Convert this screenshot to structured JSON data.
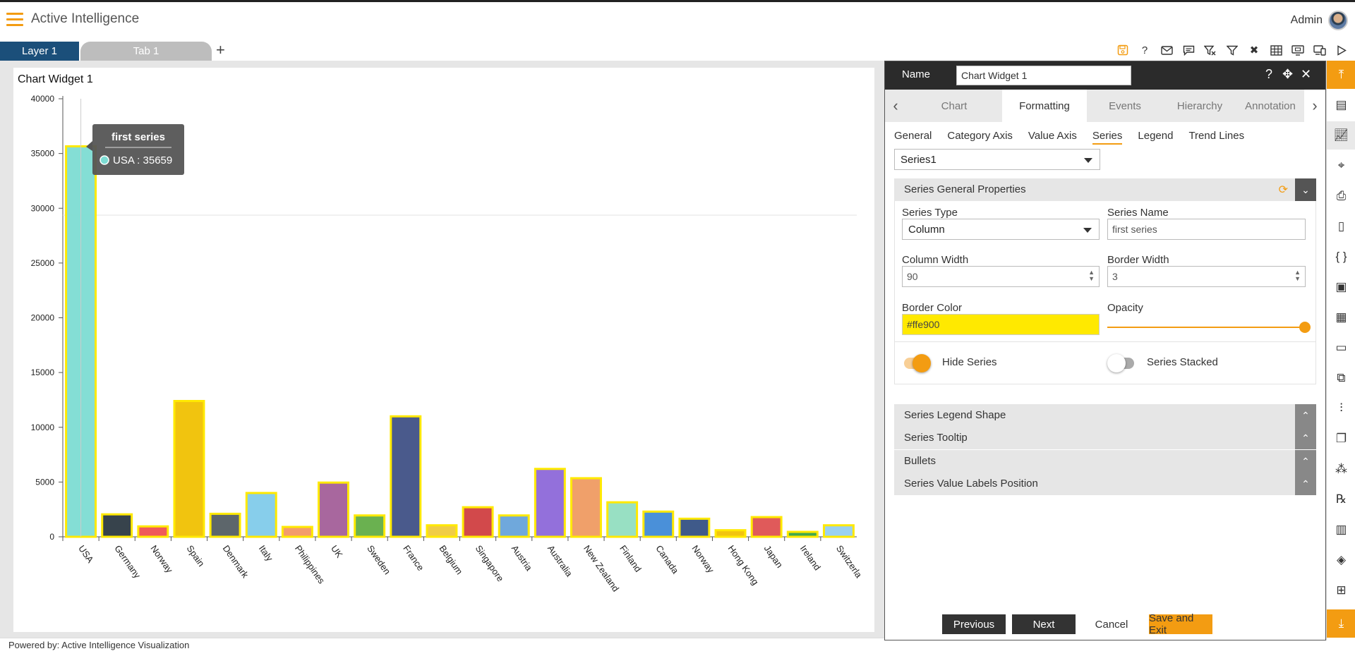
{
  "app": {
    "title": "Active Intelligence",
    "user": "Admin"
  },
  "tabs": {
    "layer": "Layer 1",
    "tab": "Tab 1",
    "add": "+"
  },
  "toolbar_icons": [
    "save-icon",
    "help-icon",
    "mail-icon",
    "comment-icon",
    "clear-filter-icon",
    "filter-icon",
    "tools-icon",
    "table-icon",
    "screen-icon",
    "devices-icon",
    "play-icon"
  ],
  "widget": {
    "title": "Chart Widget 1"
  },
  "footer": {
    "text": "Powered by: Active Intelligence Visualization"
  },
  "chart_data": {
    "type": "bar",
    "title": "Chart Widget 1",
    "ylim": [
      0,
      40000
    ],
    "yticks": [
      0,
      5000,
      10000,
      15000,
      20000,
      25000,
      30000,
      35000,
      40000
    ],
    "categories": [
      "USA",
      "Germany",
      "Norway",
      "Spain",
      "Denmark",
      "Italy",
      "Philippines",
      "UK",
      "Sweden",
      "France",
      "Belgium",
      "Singapore",
      "Austria",
      "Australia",
      "New Zealand",
      "Finland",
      "Canada",
      "Norway",
      "Hong Kong",
      "Japan",
      "Ireland",
      "Switzerla"
    ],
    "values": [
      35659,
      2050,
      950,
      12400,
      2100,
      4000,
      900,
      4950,
      1950,
      11000,
      1050,
      2700,
      1950,
      6200,
      5350,
      3150,
      2300,
      1650,
      600,
      1800,
      450,
      1050
    ],
    "colors": [
      "#7ddcd3",
      "#37434c",
      "#ef5a5a",
      "#f1c40f",
      "#5d666b",
      "#87ceeb",
      "#f39c6b",
      "#a8679e",
      "#6ab150",
      "#4a5a8c",
      "#f0cd46",
      "#d2494b",
      "#6fa8dc",
      "#9370db",
      "#f0a06a",
      "#98e0c3",
      "#4a90d9",
      "#3f5a8a",
      "#f1c40f",
      "#e05a5a",
      "#3fa84f",
      "#9ad1f0"
    ],
    "series": [
      {
        "name": "first series"
      }
    ],
    "tooltip": {
      "title": "first series",
      "text": "USA : 35659"
    },
    "border_color": "#ffe900",
    "grid": false
  },
  "panel": {
    "name_label": "Name",
    "name_value": "Chart Widget 1",
    "tabs": [
      "Chart",
      "Formatting",
      "Events",
      "Hierarchy",
      "Annotation"
    ],
    "active_tab": "Formatting",
    "subtabs": [
      "General",
      "Category Axis",
      "Value Axis",
      "Series",
      "Legend",
      "Trend Lines"
    ],
    "active_subtab": "Series",
    "series_select": "Series1",
    "general": {
      "title": "Series General Properties",
      "series_type_label": "Series Type",
      "series_type_value": "Column",
      "series_name_label": "Series Name",
      "series_name_value": "first series",
      "column_width_label": "Column Width",
      "column_width_value": "90",
      "border_width_label": "Border Width",
      "border_width_value": "3",
      "border_color_label": "Border Color",
      "border_color_value": "#ffe900",
      "opacity_label": "Opacity",
      "opacity_value": 1.0,
      "hide_series_label": "Hide Series",
      "hide_series_on": true,
      "series_stacked_label": "Series Stacked",
      "series_stacked_on": false
    },
    "sections": [
      "Series Legend Shape",
      "Series Tooltip",
      "Bullets",
      "Series Value Labels Position"
    ],
    "buttons": {
      "previous": "Previous",
      "next": "Next",
      "cancel": "Cancel",
      "save": "Save and Exit"
    }
  },
  "accent": "#f39c12"
}
